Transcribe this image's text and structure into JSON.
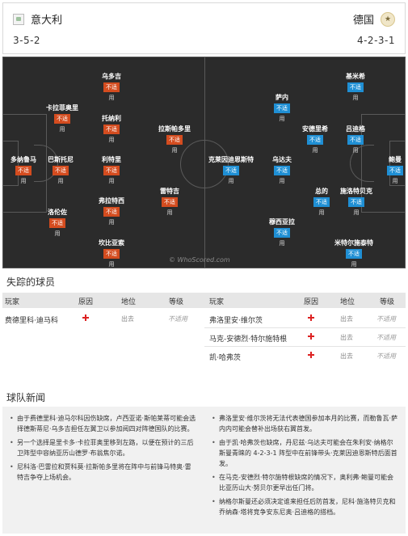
{
  "header": {
    "home": {
      "name": "意大利",
      "formation": "3-5-2"
    },
    "away": {
      "name": "德国",
      "formation": "4-2-3-1"
    }
  },
  "pitch": {
    "watermark": "© WhoScored.com",
    "badge_text": "不适",
    "use_text": "用",
    "home_players": [
      "乌多吉",
      "卡拉菲奥里",
      "托纳利",
      "拉斯帕多里",
      "多纳鲁马",
      "巴斯托尼",
      "利特里",
      "洛伦佐",
      "弗拉特西",
      "雷特吉",
      "坎比亚索"
    ],
    "away_players": [
      "基米希",
      "萨内",
      "安德里希",
      "吕迪格",
      "克莱因迪恩斯特",
      "乌达夫",
      "鲍曼",
      "总的",
      "施洛特贝克",
      "穆西亚拉",
      "米特尔施泰特"
    ]
  },
  "missing": {
    "title": "失踪的球员",
    "headers": {
      "player": "玩家",
      "reason": "原因",
      "status": "地位",
      "level": "等级"
    },
    "left_rows": [
      {
        "player": "费德里科·迪马科",
        "status": "出去",
        "level": "不适用"
      }
    ],
    "right_rows": [
      {
        "player": "弗洛里安·维尔茨",
        "status": "出去",
        "level": "不适用"
      },
      {
        "player": "马克-安德烈·特尔施特根",
        "status": "出去",
        "level": "不适用"
      },
      {
        "player": "凯·哈弗茨",
        "status": "出去",
        "level": "不适用"
      }
    ]
  },
  "news": {
    "title": "球队新闻",
    "left": [
      "由于费德里科·迪马尔科因伤缺席，卢西亚诺·斯帕莱蒂可能会选择德斯蒂尼·乌多吉担任左翼卫以参加阅四对阵德国队的比赛。",
      "另一个选择是里卡多·卡拉菲奥里移到左路，以便在预计的三后卫阵型中容纳亚历山德罗·布翁焦尔诺。",
      "尼科洛·巴雷拉和贾科莫·拉斯帕多里将在阵中与前锋马特奥·雷特吉争夺上场机会。"
    ],
    "right": [
      "弗洛里安·维尔茨将无法代表德国参加本月的比赛，而勒鲁瓦·萨内内可能会替补出场获右翼首发。",
      "由于凯·哈弗茨也缺席，丹尼兹·乌达夫可能会在朱利安·纳格尔斯曼青睐的 4-2-3-1 阵型中在前锋带头·克莱因迪恩斯特后面首发。",
      "在马克-安德烈·特尔施特根缺席的情况下，奥利弗·鲍曼可能会比亚历山大·努贝尔更早出任门将。",
      "纳格尔斯曼还必须决定谁来担任后防首发，尼科·施洛特贝克和乔纳森·塔将竞争安东尼奥·吕迪格的搭档。"
    ]
  }
}
